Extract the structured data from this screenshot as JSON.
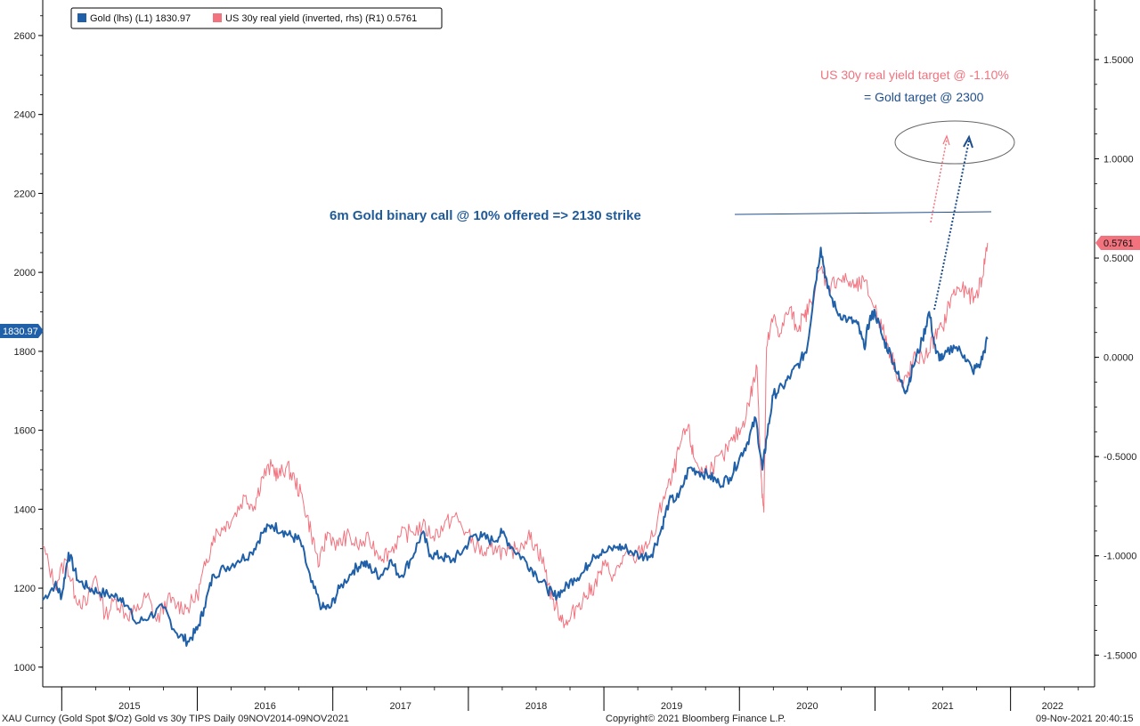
{
  "chart_data": {
    "type": "line",
    "title": "",
    "legend": {
      "placement": "top-left",
      "entries": [
        {
          "series": "gold",
          "label": "Gold (lhs) (L1) 1830.97"
        },
        {
          "series": "yield",
          "label": "US 30y real yield (inverted, rhs) (R1) 0.5761"
        }
      ]
    },
    "left_axis": {
      "ylim": [
        950,
        2690
      ],
      "ticks": [
        1000,
        1200,
        1400,
        1600,
        1800,
        2000,
        2200,
        2400,
        2600
      ],
      "tick_labels": [
        "1000",
        "1200",
        "1400",
        "1600",
        "1800",
        "2000",
        "2200",
        "2400",
        "2600"
      ],
      "last_value_label": "1830.97"
    },
    "right_axis": {
      "inverted": true,
      "ylim": [
        -1.66,
        1.8
      ],
      "ticks": [
        1.5,
        1.0,
        0.5,
        0.0,
        -0.5,
        -1.0,
        -1.5
      ],
      "tick_labels": [
        "1.5000",
        "1.0000",
        "0.5000",
        "0.0000",
        "-0.5000",
        "-1.0000",
        "-1.5000"
      ],
      "last_value_label": "0.5761"
    },
    "x_axis": {
      "range": [
        2014.86,
        2022.62
      ],
      "year_labels": [
        "2015",
        "2016",
        "2017",
        "2018",
        "2019",
        "2020",
        "2021",
        "2022"
      ]
    },
    "series": [
      {
        "id": "gold",
        "name": "Gold (lhs)",
        "axis": "left",
        "color": "#2060a8",
        "points": [
          [
            2014.86,
            1170
          ],
          [
            2014.95,
            1210
          ],
          [
            2015.0,
            1180
          ],
          [
            2015.05,
            1290
          ],
          [
            2015.12,
            1220
          ],
          [
            2015.2,
            1200
          ],
          [
            2015.28,
            1190
          ],
          [
            2015.38,
            1180
          ],
          [
            2015.45,
            1175
          ],
          [
            2015.55,
            1110
          ],
          [
            2015.65,
            1130
          ],
          [
            2015.75,
            1150
          ],
          [
            2015.85,
            1085
          ],
          [
            2015.93,
            1065
          ],
          [
            2016.0,
            1095
          ],
          [
            2016.05,
            1150
          ],
          [
            2016.12,
            1235
          ],
          [
            2016.2,
            1250
          ],
          [
            2016.3,
            1270
          ],
          [
            2016.4,
            1290
          ],
          [
            2016.48,
            1340
          ],
          [
            2016.55,
            1360
          ],
          [
            2016.63,
            1345
          ],
          [
            2016.7,
            1330
          ],
          [
            2016.76,
            1320
          ],
          [
            2016.84,
            1215
          ],
          [
            2016.92,
            1150
          ],
          [
            2016.98,
            1150
          ],
          [
            2017.05,
            1200
          ],
          [
            2017.15,
            1245
          ],
          [
            2017.22,
            1265
          ],
          [
            2017.28,
            1250
          ],
          [
            2017.35,
            1230
          ],
          [
            2017.42,
            1270
          ],
          [
            2017.5,
            1230
          ],
          [
            2017.58,
            1275
          ],
          [
            2017.66,
            1340
          ],
          [
            2017.72,
            1285
          ],
          [
            2017.8,
            1280
          ],
          [
            2017.88,
            1270
          ],
          [
            2017.96,
            1295
          ],
          [
            2018.04,
            1335
          ],
          [
            2018.1,
            1330
          ],
          [
            2018.18,
            1320
          ],
          [
            2018.25,
            1340
          ],
          [
            2018.33,
            1300
          ],
          [
            2018.42,
            1270
          ],
          [
            2018.5,
            1235
          ],
          [
            2018.58,
            1200
          ],
          [
            2018.63,
            1180
          ],
          [
            2018.7,
            1195
          ],
          [
            2018.78,
            1225
          ],
          [
            2018.85,
            1240
          ],
          [
            2018.92,
            1285
          ],
          [
            2019.0,
            1290
          ],
          [
            2019.1,
            1305
          ],
          [
            2019.17,
            1300
          ],
          [
            2019.27,
            1280
          ],
          [
            2019.35,
            1285
          ],
          [
            2019.42,
            1345
          ],
          [
            2019.48,
            1420
          ],
          [
            2019.55,
            1430
          ],
          [
            2019.63,
            1505
          ],
          [
            2019.7,
            1495
          ],
          [
            2019.78,
            1485
          ],
          [
            2019.85,
            1465
          ],
          [
            2019.93,
            1480
          ],
          [
            2020.0,
            1530
          ],
          [
            2020.06,
            1570
          ],
          [
            2020.12,
            1630
          ],
          [
            2020.17,
            1500
          ],
          [
            2020.2,
            1580
          ],
          [
            2020.25,
            1690
          ],
          [
            2020.32,
            1710
          ],
          [
            2020.38,
            1740
          ],
          [
            2020.45,
            1775
          ],
          [
            2020.5,
            1810
          ],
          [
            2020.55,
            1950
          ],
          [
            2020.6,
            2063
          ],
          [
            2020.65,
            1960
          ],
          [
            2020.72,
            1900
          ],
          [
            2020.8,
            1880
          ],
          [
            2020.87,
            1870
          ],
          [
            2020.92,
            1810
          ],
          [
            2020.96,
            1880
          ],
          [
            2021.0,
            1900
          ],
          [
            2021.06,
            1830
          ],
          [
            2021.12,
            1790
          ],
          [
            2021.18,
            1730
          ],
          [
            2021.23,
            1700
          ],
          [
            2021.28,
            1760
          ],
          [
            2021.35,
            1830
          ],
          [
            2021.4,
            1900
          ],
          [
            2021.45,
            1795
          ],
          [
            2021.5,
            1780
          ],
          [
            2021.58,
            1815
          ],
          [
            2021.66,
            1790
          ],
          [
            2021.72,
            1750
          ],
          [
            2021.78,
            1770
          ],
          [
            2021.83,
            1830.97
          ]
        ]
      },
      {
        "id": "yield",
        "name": "US 30y real yield (inverted, rhs)",
        "axis": "right",
        "color": "#f2727e",
        "points": [
          [
            2014.86,
            -0.95
          ],
          [
            2014.95,
            -1.15
          ],
          [
            2015.03,
            -1.02
          ],
          [
            2015.1,
            -1.2
          ],
          [
            2015.18,
            -1.25
          ],
          [
            2015.25,
            -1.1
          ],
          [
            2015.32,
            -1.3
          ],
          [
            2015.4,
            -1.22
          ],
          [
            2015.48,
            -1.3
          ],
          [
            2015.55,
            -1.28
          ],
          [
            2015.63,
            -1.2
          ],
          [
            2015.7,
            -1.33
          ],
          [
            2015.78,
            -1.22
          ],
          [
            2015.85,
            -1.25
          ],
          [
            2015.93,
            -1.26
          ],
          [
            2016.0,
            -1.2
          ],
          [
            2016.06,
            -1.05
          ],
          [
            2016.12,
            -0.9
          ],
          [
            2016.2,
            -0.85
          ],
          [
            2016.27,
            -0.8
          ],
          [
            2016.35,
            -0.7
          ],
          [
            2016.42,
            -0.75
          ],
          [
            2016.48,
            -0.6
          ],
          [
            2016.55,
            -0.55
          ],
          [
            2016.6,
            -0.6
          ],
          [
            2016.66,
            -0.55
          ],
          [
            2016.72,
            -0.62
          ],
          [
            2016.78,
            -0.72
          ],
          [
            2016.84,
            -0.88
          ],
          [
            2016.9,
            -1.05
          ],
          [
            2016.96,
            -0.88
          ],
          [
            2017.04,
            -0.95
          ],
          [
            2017.1,
            -0.9
          ],
          [
            2017.18,
            -0.95
          ],
          [
            2017.27,
            -0.92
          ],
          [
            2017.35,
            -1.0
          ],
          [
            2017.42,
            -0.98
          ],
          [
            2017.5,
            -0.9
          ],
          [
            2017.58,
            -0.88
          ],
          [
            2017.66,
            -0.85
          ],
          [
            2017.74,
            -0.9
          ],
          [
            2017.82,
            -0.85
          ],
          [
            2017.9,
            -0.8
          ],
          [
            2017.98,
            -0.88
          ],
          [
            2018.06,
            -0.95
          ],
          [
            2018.13,
            -1.0
          ],
          [
            2018.2,
            -0.95
          ],
          [
            2018.28,
            -1.0
          ],
          [
            2018.36,
            -0.96
          ],
          [
            2018.44,
            -0.9
          ],
          [
            2018.5,
            -0.95
          ],
          [
            2018.56,
            -1.05
          ],
          [
            2018.62,
            -1.22
          ],
          [
            2018.68,
            -1.3
          ],
          [
            2018.73,
            -1.35
          ],
          [
            2018.8,
            -1.25
          ],
          [
            2018.87,
            -1.2
          ],
          [
            2018.93,
            -1.15
          ],
          [
            2019.0,
            -1.05
          ],
          [
            2019.08,
            -1.1
          ],
          [
            2019.15,
            -1.0
          ],
          [
            2019.22,
            -1.02
          ],
          [
            2019.3,
            -0.95
          ],
          [
            2019.37,
            -0.9
          ],
          [
            2019.44,
            -0.7
          ],
          [
            2019.5,
            -0.62
          ],
          [
            2019.56,
            -0.45
          ],
          [
            2019.62,
            -0.35
          ],
          [
            2019.66,
            -0.5
          ],
          [
            2019.73,
            -0.58
          ],
          [
            2019.8,
            -0.55
          ],
          [
            2019.88,
            -0.5
          ],
          [
            2019.95,
            -0.42
          ],
          [
            2020.02,
            -0.35
          ],
          [
            2020.08,
            -0.2
          ],
          [
            2020.13,
            -0.05
          ],
          [
            2020.16,
            -0.6
          ],
          [
            2020.18,
            -0.78
          ],
          [
            2020.2,
            0.05
          ],
          [
            2020.25,
            0.2
          ],
          [
            2020.3,
            0.12
          ],
          [
            2020.37,
            0.25
          ],
          [
            2020.42,
            0.15
          ],
          [
            2020.48,
            0.2
          ],
          [
            2020.53,
            0.28
          ],
          [
            2020.6,
            0.45
          ],
          [
            2020.66,
            0.35
          ],
          [
            2020.73,
            0.4
          ],
          [
            2020.8,
            0.38
          ],
          [
            2020.86,
            0.35
          ],
          [
            2020.92,
            0.38
          ],
          [
            2021.0,
            0.25
          ],
          [
            2021.05,
            0.15
          ],
          [
            2021.1,
            0.05
          ],
          [
            2021.15,
            -0.05
          ],
          [
            2021.2,
            -0.15
          ],
          [
            2021.25,
            -0.08
          ],
          [
            2021.3,
            0.0
          ],
          [
            2021.37,
            0.0
          ],
          [
            2021.44,
            0.1
          ],
          [
            2021.5,
            0.15
          ],
          [
            2021.56,
            0.3
          ],
          [
            2021.62,
            0.35
          ],
          [
            2021.68,
            0.32
          ],
          [
            2021.74,
            0.3
          ],
          [
            2021.79,
            0.4
          ],
          [
            2021.83,
            0.5761
          ]
        ]
      }
    ],
    "annotations": {
      "binary_call": "6m Gold binary call @ 10% offered => 2130 strike",
      "yield_target": "US 30y real yield target @ -1.10%",
      "gold_target": "= Gold target @ 2300"
    },
    "footer": {
      "left": "XAU Curncy (Gold Spot  $/Oz) Gold vs 30y TIPS  Daily 09NOV2014-09NOV2021",
      "center": "Copyright© 2021 Bloomberg Finance L.P.",
      "right": "09-Nov-2021 20:40:15"
    },
    "colors": {
      "gold": "#2060a8",
      "yield": "#f2727e",
      "gold_dark": "#1f4e8c"
    }
  }
}
